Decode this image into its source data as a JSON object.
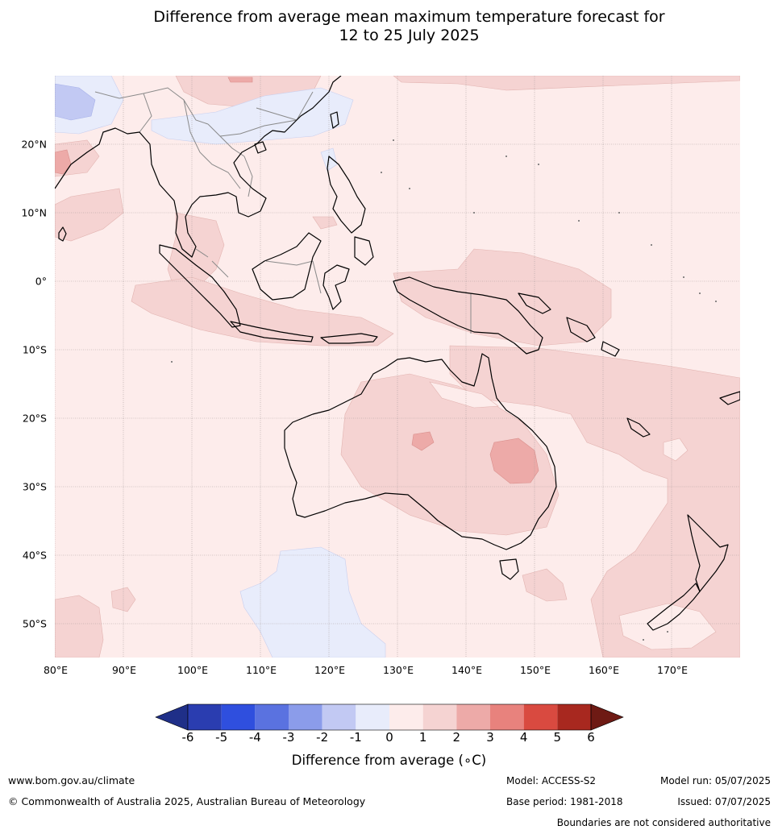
{
  "title": {
    "line1": "Difference from average mean maximum temperature forecast for",
    "line2": "12 to 25 July 2025"
  },
  "map": {
    "lat_labels": [
      "20°N",
      "10°N",
      "0°",
      "10°S",
      "20°S",
      "30°S",
      "40°S",
      "50°S"
    ],
    "lon_labels": [
      "80°E",
      "90°E",
      "100°E",
      "110°E",
      "120°E",
      "130°E",
      "140°E",
      "150°E",
      "160°E",
      "170°E"
    ],
    "lat_range": [
      -55,
      30
    ],
    "lon_range": [
      80,
      180
    ]
  },
  "colorbar": {
    "ticks": [
      "-6",
      "-5",
      "-4",
      "-3",
      "-2",
      "-1",
      "0",
      "1",
      "2",
      "3",
      "4",
      "5",
      "6"
    ],
    "label": "Difference from average ($^\\circ$C)",
    "label_display": "Difference from average (∘C)",
    "colors": [
      "#1f2f88",
      "#2a3db0",
      "#2f4fde",
      "#5a72e0",
      "#8b9cea",
      "#c2c9f3",
      "#e8ecfb",
      "#fdeceb",
      "#f5d3d2",
      "#edaaa8",
      "#e8827d",
      "#d94a40",
      "#a8281f",
      "#6e1a14"
    ]
  },
  "footer": {
    "website": "www.bom.gov.au/climate",
    "copyright": "© Commonwealth of Australia 2025, Australian Bureau of Meteorology",
    "model": "Model: ACCESS-S2",
    "base_period": "Base period: 1981-2018",
    "model_run": "Model run: 05/07/2025",
    "issued": "Issued: 07/07/2025",
    "boundaries": "Boundaries are not considered authoritative"
  }
}
